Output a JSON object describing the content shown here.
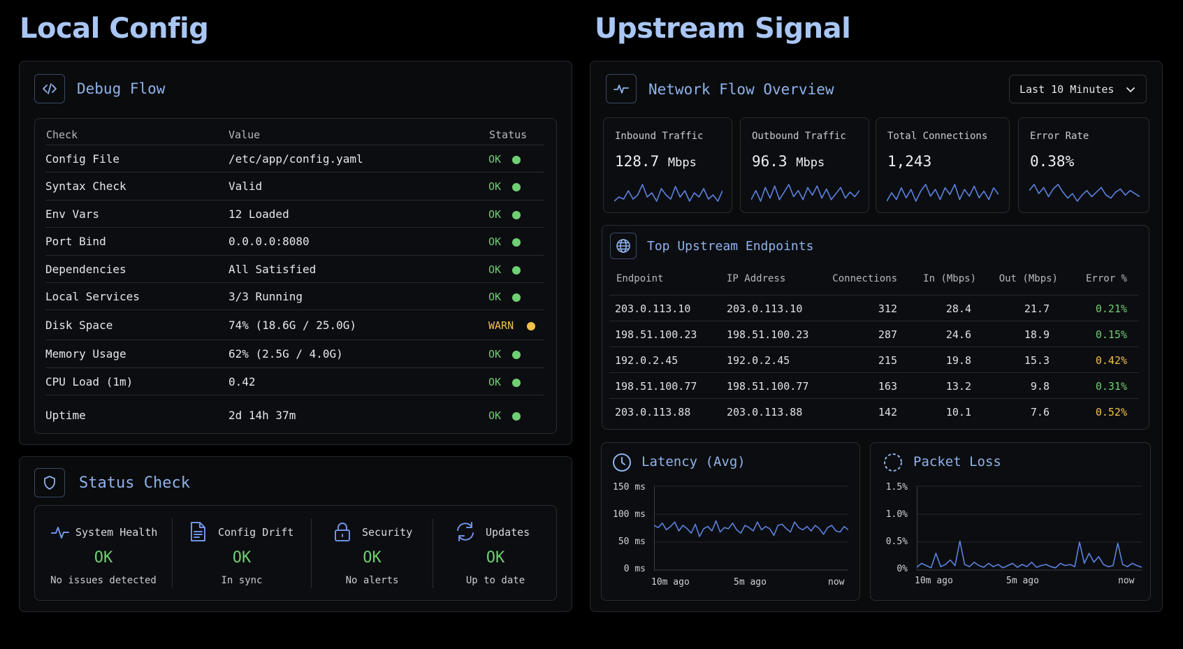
{
  "left": {
    "heading": "Local Config",
    "debug": {
      "title": "Debug Flow",
      "columns": [
        "Check",
        "Value",
        "Status"
      ],
      "rows": [
        {
          "check": "Config File",
          "value": "/etc/app/config.yaml",
          "status": "OK"
        },
        {
          "check": "Syntax Check",
          "value": "Valid",
          "status": "OK"
        },
        {
          "check": "Env Vars",
          "value": "12 Loaded",
          "status": "OK"
        },
        {
          "check": "Port Bind",
          "value": "0.0.0.0:8080",
          "status": "OK"
        },
        {
          "check": "Dependencies",
          "value": "All Satisfied",
          "status": "OK"
        },
        {
          "check": "Local Services",
          "value": "3/3 Running",
          "status": "OK"
        },
        {
          "check": "Disk Space",
          "value": "74% (18.6G / 25.0G)",
          "status": "WARN"
        },
        {
          "check": "Memory Usage",
          "value": "62% (2.5G / 4.0G)",
          "status": "OK"
        },
        {
          "check": "CPU Load (1m)",
          "value": "0.42",
          "status": "OK"
        },
        {
          "check": "Uptime",
          "value": "2d 14h 37m",
          "status": "OK"
        }
      ]
    },
    "status_check": {
      "title": "Status Check",
      "items": [
        {
          "label": "System Health",
          "value": "OK",
          "sub": "No issues detected",
          "icon": "pulse-icon"
        },
        {
          "label": "Config Drift",
          "value": "OK",
          "sub": "In sync",
          "icon": "document-icon"
        },
        {
          "label": "Security",
          "value": "OK",
          "sub": "No alerts",
          "icon": "lock-icon"
        },
        {
          "label": "Updates",
          "value": "OK",
          "sub": "Up to date",
          "icon": "refresh-icon"
        }
      ]
    }
  },
  "right": {
    "heading": "Upstream Signal",
    "network": {
      "title": "Network Flow Overview",
      "range_select": "Last 10 Minutes",
      "metrics": [
        {
          "label": "Inbound Traffic",
          "value": "128.7",
          "unit": "Mbps"
        },
        {
          "label": "Outbound Traffic",
          "value": "96.3",
          "unit": "Mbps"
        },
        {
          "label": "Total Connections",
          "value": "1,243",
          "unit": ""
        },
        {
          "label": "Error Rate",
          "value": "0.38%",
          "unit": ""
        }
      ]
    },
    "endpoints": {
      "title": "Top Upstream Endpoints",
      "columns": [
        "Endpoint",
        "IP Address",
        "Connections",
        "In (Mbps)",
        "Out (Mbps)",
        "Error %"
      ],
      "rows": [
        {
          "endpoint": "203.0.113.10",
          "ip": "203.0.113.10",
          "connections": "312",
          "in": "28.4",
          "out": "21.7",
          "error": "0.21%",
          "level": "good"
        },
        {
          "endpoint": "198.51.100.23",
          "ip": "198.51.100.23",
          "connections": "287",
          "in": "24.6",
          "out": "18.9",
          "error": "0.15%",
          "level": "good"
        },
        {
          "endpoint": "192.0.2.45",
          "ip": "192.0.2.45",
          "connections": "215",
          "in": "19.8",
          "out": "15.3",
          "error": "0.42%",
          "level": "warn"
        },
        {
          "endpoint": "198.51.100.77",
          "ip": "198.51.100.77",
          "connections": "163",
          "in": "13.2",
          "out": "9.8",
          "error": "0.31%",
          "level": "good"
        },
        {
          "endpoint": "203.0.113.88",
          "ip": "203.0.113.88",
          "connections": "142",
          "in": "10.1",
          "out": "7.6",
          "error": "0.52%",
          "level": "warn"
        }
      ]
    },
    "latency": {
      "title": "Latency (Avg)",
      "y_ticks": [
        "150 ms",
        "100 ms",
        "50 ms",
        "0 ms"
      ],
      "x_ticks": [
        "10m ago",
        "5m ago",
        "now"
      ]
    },
    "packet_loss": {
      "title": "Packet Loss",
      "y_ticks": [
        "1.5%",
        "1.0%",
        "0.5%",
        "0%"
      ],
      "x_ticks": [
        "10m ago",
        "5m ago",
        "now"
      ]
    }
  },
  "colors": {
    "ok": "#6fcf73",
    "warn": "#f0c24a",
    "accent": "#8fb3ec",
    "line": "#5b83e0"
  },
  "chart_data": [
    {
      "type": "line",
      "title": "Latency (Avg)",
      "ylim": [
        0,
        150
      ],
      "x_ticks": [
        "10m ago",
        "5m ago",
        "now"
      ],
      "series": [
        {
          "values": [
            80,
            76,
            84,
            72,
            78,
            86,
            70,
            80,
            74,
            66,
            82,
            60,
            74,
            78,
            70,
            88,
            68,
            76,
            74,
            84,
            72,
            66,
            80,
            76,
            70,
            86,
            72,
            78,
            74,
            62,
            80,
            82,
            74,
            68,
            86,
            76,
            72,
            78,
            70,
            80,
            74,
            64,
            76,
            80,
            70,
            68,
            78,
            72
          ]
        }
      ]
    },
    {
      "type": "line",
      "title": "Packet Loss",
      "ylim": [
        0,
        1.5
      ],
      "x_ticks": [
        "10m ago",
        "5m ago",
        "now"
      ],
      "series": [
        {
          "values": [
            0.05,
            0.12,
            0.08,
            0.04,
            0.3,
            0.06,
            0.1,
            0.18,
            0.08,
            0.52,
            0.1,
            0.06,
            0.14,
            0.08,
            0.05,
            0.12,
            0.06,
            0.1,
            0.04,
            0.08,
            0.12,
            0.05,
            0.1,
            0.06,
            0.14,
            0.05,
            0.08,
            0.1,
            0.06,
            0.04,
            0.12,
            0.08,
            0.1,
            0.06,
            0.5,
            0.12,
            0.3,
            0.14,
            0.24,
            0.1,
            0.06,
            0.08,
            0.48,
            0.1,
            0.06,
            0.12,
            0.08,
            0.05
          ]
        }
      ]
    },
    {
      "type": "line",
      "title": "Inbound Traffic",
      "series": [
        {
          "values": [
            4,
            6,
            5,
            9,
            5,
            7,
            12,
            6,
            8,
            4,
            10,
            7,
            5,
            11,
            6,
            9,
            4,
            8,
            6,
            10,
            5,
            7,
            4,
            9
          ]
        }
      ]
    },
    {
      "type": "line",
      "title": "Outbound Traffic",
      "series": [
        {
          "values": [
            6,
            12,
            5,
            14,
            7,
            15,
            6,
            11,
            16,
            8,
            12,
            6,
            14,
            9,
            15,
            7,
            13,
            6,
            10,
            14,
            7,
            11,
            8,
            12
          ]
        }
      ]
    },
    {
      "type": "line",
      "title": "Total Connections",
      "series": [
        {
          "values": [
            5,
            10,
            6,
            13,
            7,
            12,
            5,
            11,
            15,
            8,
            12,
            6,
            13,
            9,
            15,
            6,
            12,
            8,
            14,
            7,
            11,
            6,
            13,
            9
          ]
        }
      ]
    },
    {
      "type": "line",
      "title": "Error Rate",
      "series": [
        {
          "values": [
            10,
            14,
            8,
            12,
            6,
            11,
            14,
            9,
            5,
            8,
            3,
            7,
            10,
            6,
            9,
            12,
            7,
            5,
            9,
            11,
            7,
            10,
            8,
            6
          ]
        }
      ]
    }
  ]
}
